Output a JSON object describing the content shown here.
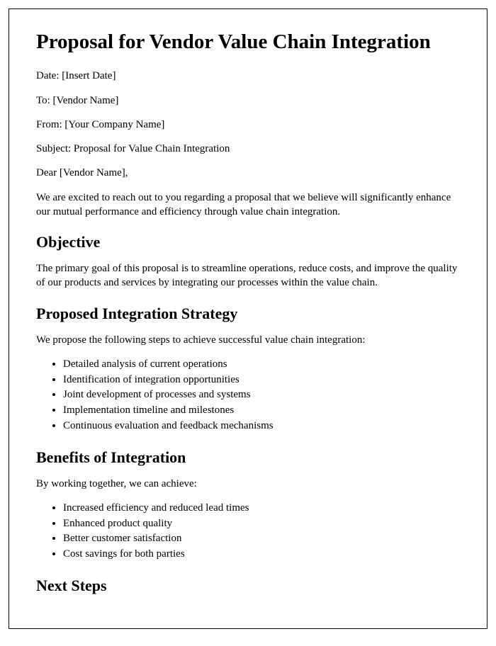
{
  "title": "Proposal for Vendor Value Chain Integration",
  "meta": {
    "date": "Date: [Insert Date]",
    "to": "To: [Vendor Name]",
    "from": "From: [Your Company Name]",
    "subject": "Subject: Proposal for Value Chain Integration"
  },
  "salutation": "Dear [Vendor Name],",
  "intro": "We are excited to reach out to you regarding a proposal that we believe will significantly enhance our mutual performance and efficiency through value chain integration.",
  "objective": {
    "heading": "Objective",
    "body": "The primary goal of this proposal is to streamline operations, reduce costs, and improve the quality of our products and services by integrating our processes within the value chain."
  },
  "strategy": {
    "heading": "Proposed Integration Strategy",
    "lead": "We propose the following steps to achieve successful value chain integration:",
    "items": [
      "Detailed analysis of current operations",
      "Identification of integration opportunities",
      "Joint development of processes and systems",
      "Implementation timeline and milestones",
      "Continuous evaluation and feedback mechanisms"
    ]
  },
  "benefits": {
    "heading": "Benefits of Integration",
    "lead": "By working together, we can achieve:",
    "items": [
      "Increased efficiency and reduced lead times",
      "Enhanced product quality",
      "Better customer satisfaction",
      "Cost savings for both parties"
    ]
  },
  "nextsteps": {
    "heading": "Next Steps"
  }
}
